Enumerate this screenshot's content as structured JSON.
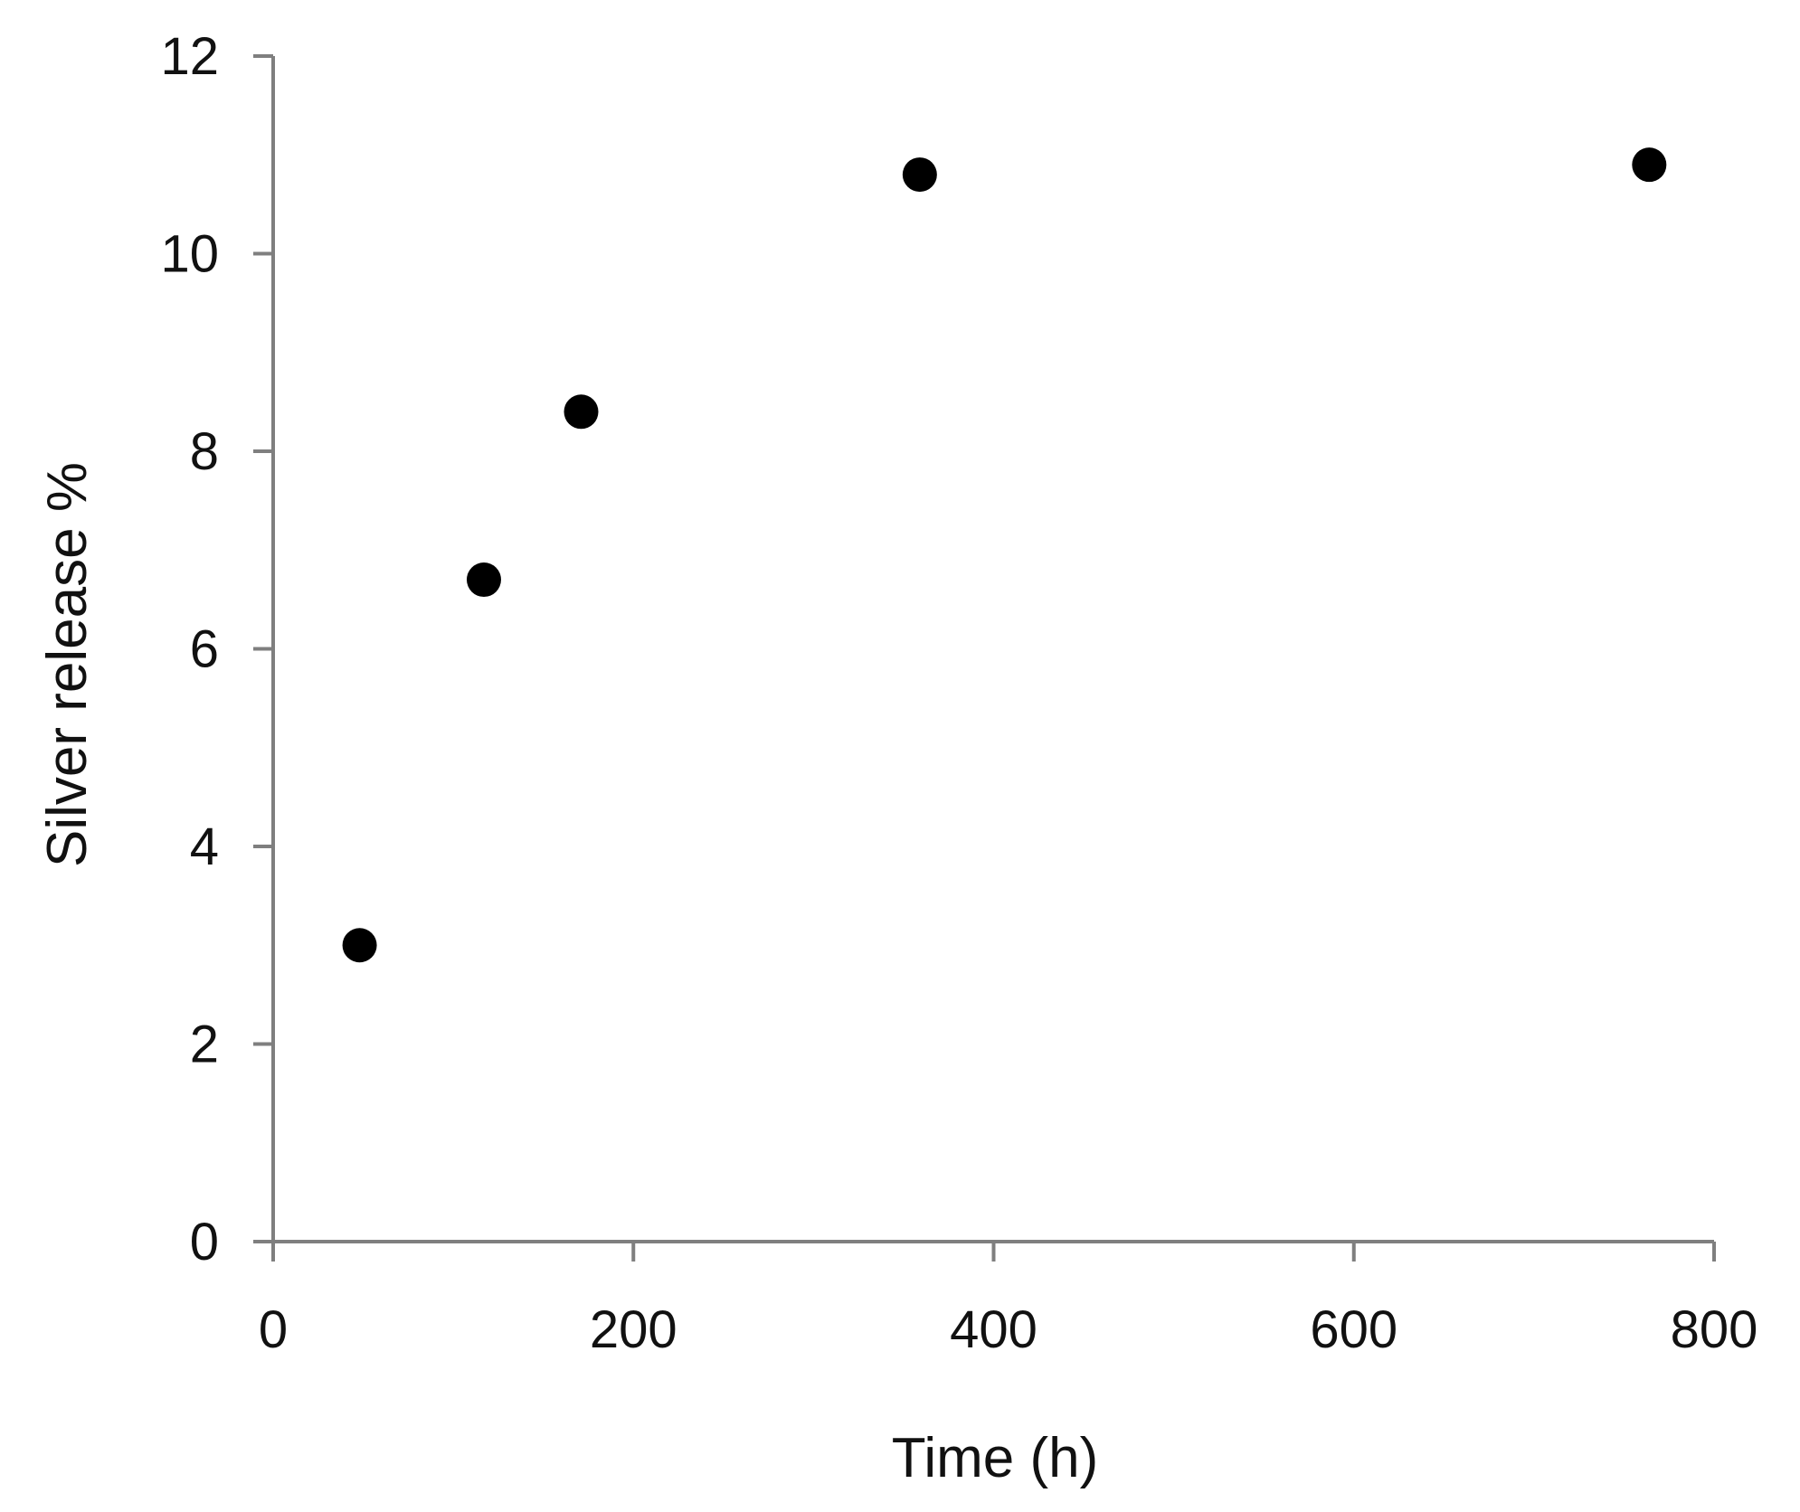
{
  "chart_data": {
    "type": "scatter",
    "title": "",
    "xlabel": "Time (h)",
    "ylabel": "Silver release %",
    "xlim": [
      0,
      800
    ],
    "ylim": [
      0,
      12
    ],
    "x_ticks": [
      0,
      200,
      400,
      600,
      800
    ],
    "y_ticks": [
      0,
      2,
      4,
      6,
      8,
      10,
      12
    ],
    "grid": false,
    "legend": "none",
    "series": [
      {
        "color": "#000000",
        "points": [
          {
            "x": 48,
            "y": 3.0
          },
          {
            "x": 117,
            "y": 6.7
          },
          {
            "x": 171,
            "y": 8.4
          },
          {
            "x": 359,
            "y": 10.8
          },
          {
            "x": 764,
            "y": 10.9
          }
        ]
      }
    ],
    "axis_color": "#7f7f7f"
  }
}
